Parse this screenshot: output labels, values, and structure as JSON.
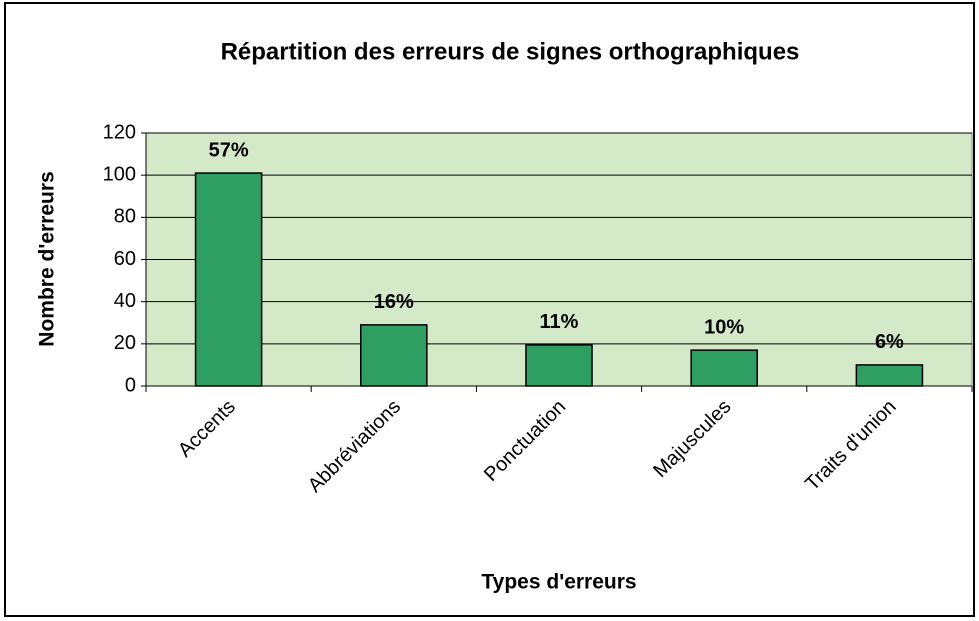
{
  "chart_data": {
    "type": "bar",
    "title": "Répartition des erreurs de signes orthographiques",
    "x_label": "Types d'erreurs",
    "y_label": "Nombre d'erreurs",
    "categories": [
      "Accents",
      "Abbréviations",
      "Ponctuation",
      "Majuscules",
      "Traits d'union"
    ],
    "values": [
      101,
      29,
      19.5,
      17,
      10
    ],
    "data_labels": [
      "57%",
      "16%",
      "11%",
      "10%",
      "6%"
    ],
    "color": "#2e9e63",
    "plot_background": "#d3e9c8",
    "ylim": [
      0,
      120
    ],
    "yticks": [
      0,
      20,
      40,
      60,
      80,
      100,
      120
    ],
    "grid": true
  }
}
